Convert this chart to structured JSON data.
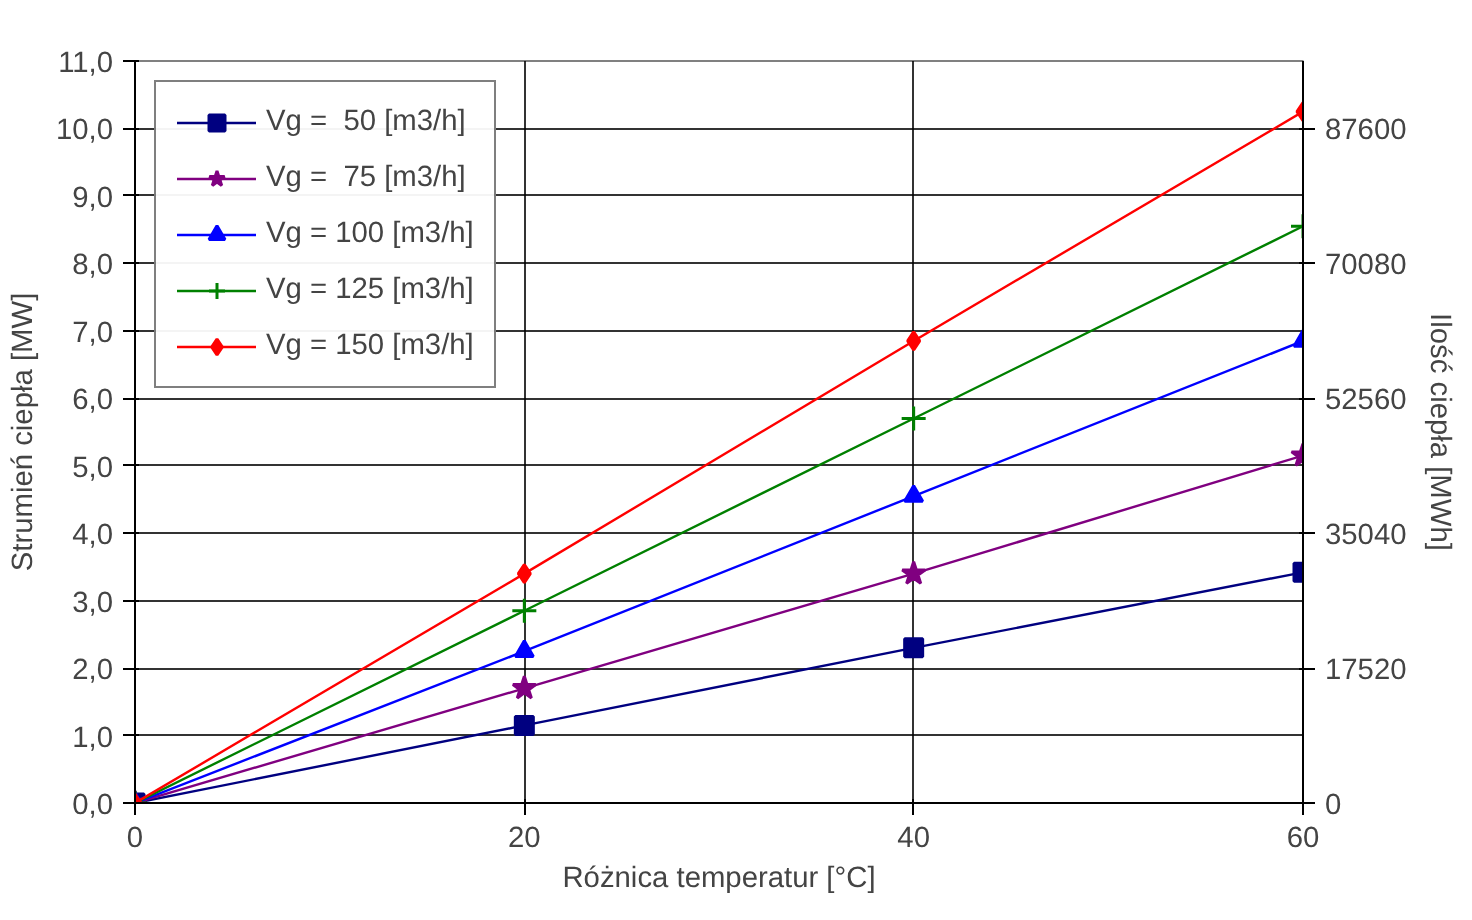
{
  "chart_data": {
    "type": "line",
    "xlabel": "Różnica temperatur [°C]",
    "ylabel": "Strumień ciepła [MW]",
    "y2label": "Ilość ciepła [MWh]",
    "x": [
      0,
      20,
      40,
      60
    ],
    "series": [
      {
        "name": "Vg =  50 [m3/h]",
        "color": "#000080",
        "marker": "square",
        "values": [
          0,
          1.15,
          2.3,
          3.42
        ]
      },
      {
        "name": "Vg =  75 [m3/h]",
        "color": "#800080",
        "marker": "star",
        "values": [
          0,
          1.7,
          3.4,
          5.15
        ]
      },
      {
        "name": "Vg = 100 [m3/h]",
        "color": "#0000ff",
        "marker": "triangle",
        "values": [
          0,
          2.25,
          4.55,
          6.85
        ]
      },
      {
        "name": "Vg = 125 [m3/h]",
        "color": "#008000",
        "marker": "cross",
        "values": [
          0,
          2.85,
          5.7,
          8.55
        ]
      },
      {
        "name": "Vg = 150 [m3/h]",
        "color": "#ff0000",
        "marker": "diamond",
        "values": [
          0,
          3.4,
          6.85,
          10.25
        ]
      }
    ],
    "xlim": [
      0,
      60
    ],
    "xticks": [
      0,
      20,
      40,
      60
    ],
    "ylim": [
      0,
      11
    ],
    "yticks": [
      {
        "value": 0,
        "label": "0,0"
      },
      {
        "value": 1,
        "label": "1,0"
      },
      {
        "value": 2,
        "label": "2,0"
      },
      {
        "value": 3,
        "label": "3,0"
      },
      {
        "value": 4,
        "label": "4,0"
      },
      {
        "value": 5,
        "label": "5,0"
      },
      {
        "value": 6,
        "label": "6,0"
      },
      {
        "value": 7,
        "label": "7,0"
      },
      {
        "value": 8,
        "label": "8,0"
      },
      {
        "value": 9,
        "label": "9,0"
      },
      {
        "value": 10,
        "label": "10,0"
      },
      {
        "value": 11,
        "label": "11,0"
      }
    ],
    "y2lim": [
      0,
      96360
    ],
    "y2ticks": [
      0,
      17520,
      35040,
      52560,
      70080,
      87600
    ],
    "grid": true,
    "legend": "top left",
    "line_style": "solid"
  }
}
